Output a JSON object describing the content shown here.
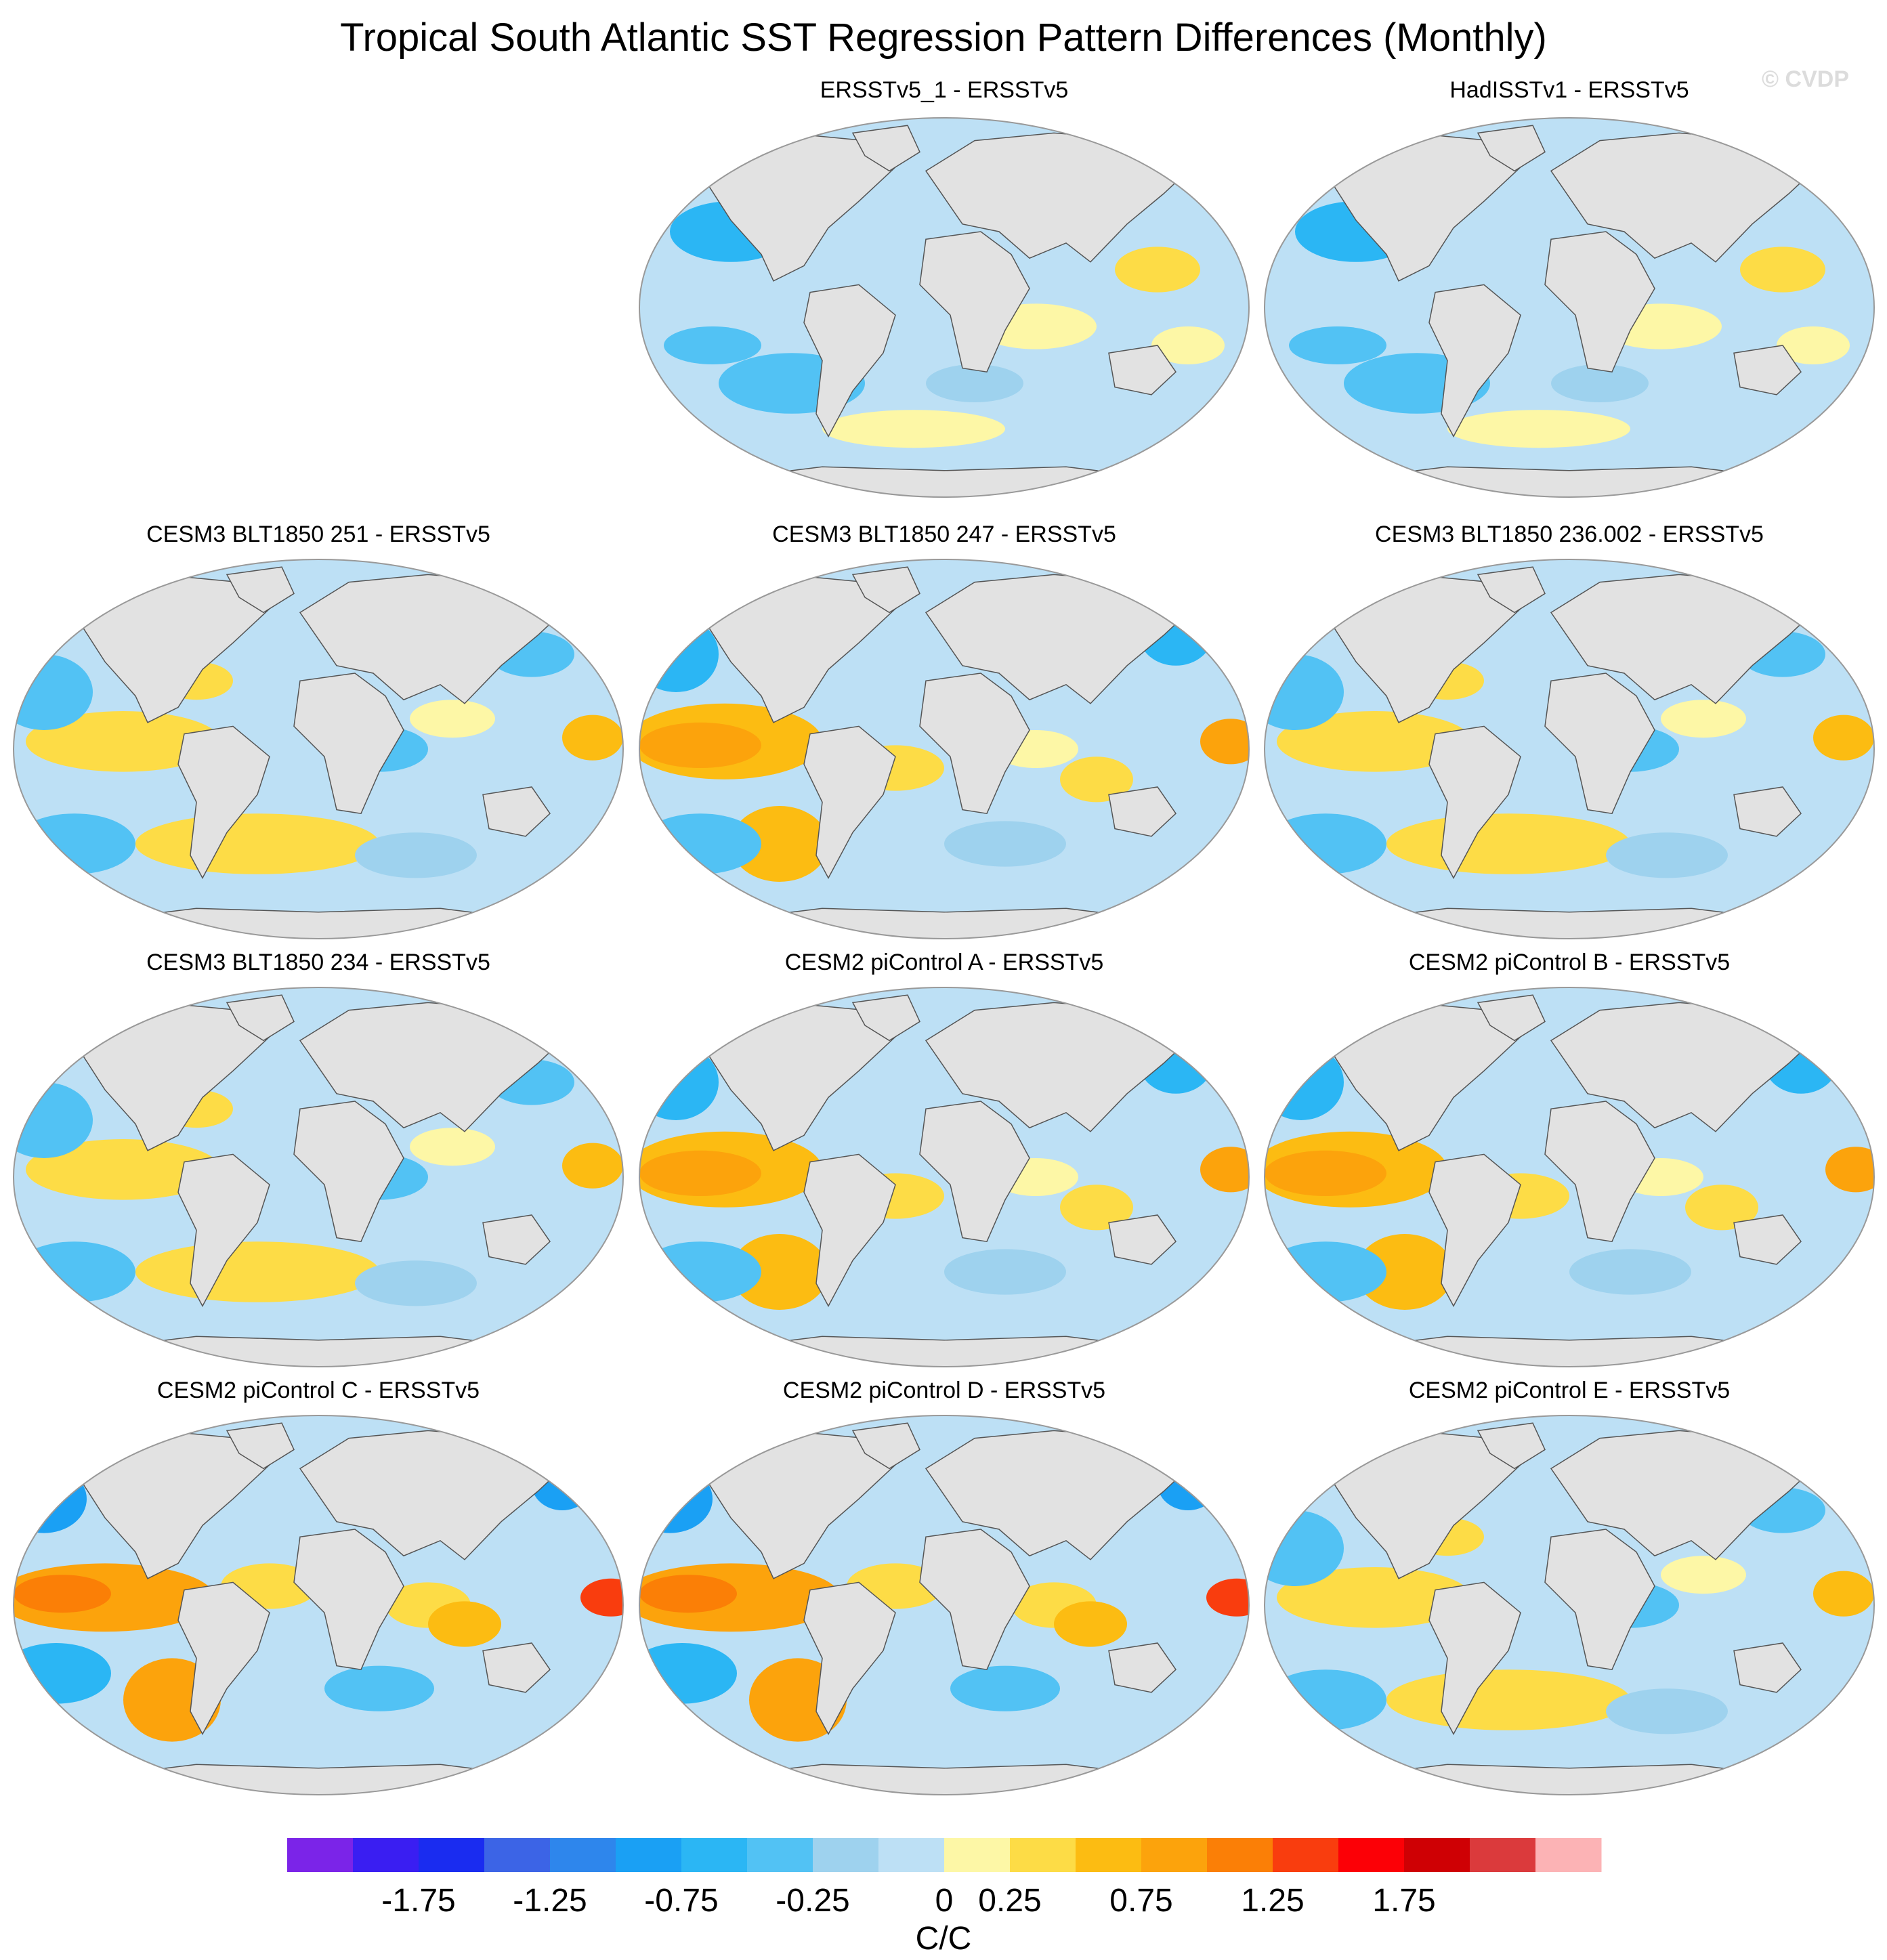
{
  "title": "Tropical South Atlantic SST Regression Pattern Differences (Monthly)",
  "watermark": "© CVDP",
  "chart_data": {
    "type": "heatmap",
    "projection": "Robinson (global map panels)",
    "variable": "SST regression pattern difference",
    "panels": [
      {
        "title": "ERSSTv5_1 - ERSSTv5",
        "pattern": "weak"
      },
      {
        "title": "HadISSTv1 - ERSSTv5",
        "pattern": "weak"
      },
      {
        "title": "CESM3 BLT1850 251 - ERSSTv5",
        "pattern": "moderate"
      },
      {
        "title": "CESM3 BLT1850 247 - ERSSTv5",
        "pattern": "strong"
      },
      {
        "title": "CESM3 BLT1850 236.002 - ERSSTv5",
        "pattern": "moderate"
      },
      {
        "title": "CESM3 BLT1850 234 - ERSSTv5",
        "pattern": "moderate"
      },
      {
        "title": "CESM2 piControl A - ERSSTv5",
        "pattern": "strong"
      },
      {
        "title": "CESM2 piControl B - ERSSTv5",
        "pattern": "strong"
      },
      {
        "title": "CESM2 piControl C - ERSSTv5",
        "pattern": "very-strong"
      },
      {
        "title": "CESM2 piControl D - ERSSTv5",
        "pattern": "very-strong"
      },
      {
        "title": "CESM2 piControl E - ERSSTv5",
        "pattern": "moderate"
      }
    ],
    "colorbar": {
      "levels": [
        -2,
        -1.75,
        -1.5,
        -1.25,
        -1,
        -0.75,
        -0.5,
        -0.25,
        0,
        0.25,
        0.5,
        0.75,
        1,
        1.25,
        1.5,
        1.75,
        2
      ],
      "tick_labels": [
        "-1.75",
        "-1.25",
        "-0.75",
        "-0.25",
        "0",
        "0.25",
        "0.75",
        "1.25",
        "1.75"
      ],
      "colors": [
        "#7b24e8",
        "#3a1ef2",
        "#1a2cf0",
        "#3c64e6",
        "#2e86ec",
        "#1aa0f4",
        "#2bb6f4",
        "#52c2f4",
        "#9ed2ee",
        "#bde0f5",
        "#fdf7a6",
        "#fddc46",
        "#fcbc12",
        "#fca30c",
        "#fb7f06",
        "#f93d0e",
        "#fc0006",
        "#cf0004",
        "#db3a3c",
        "#fcb3b5"
      ],
      "unit": "C/C"
    }
  },
  "land_color": "#e2e2e2",
  "coast_color": "#555555"
}
